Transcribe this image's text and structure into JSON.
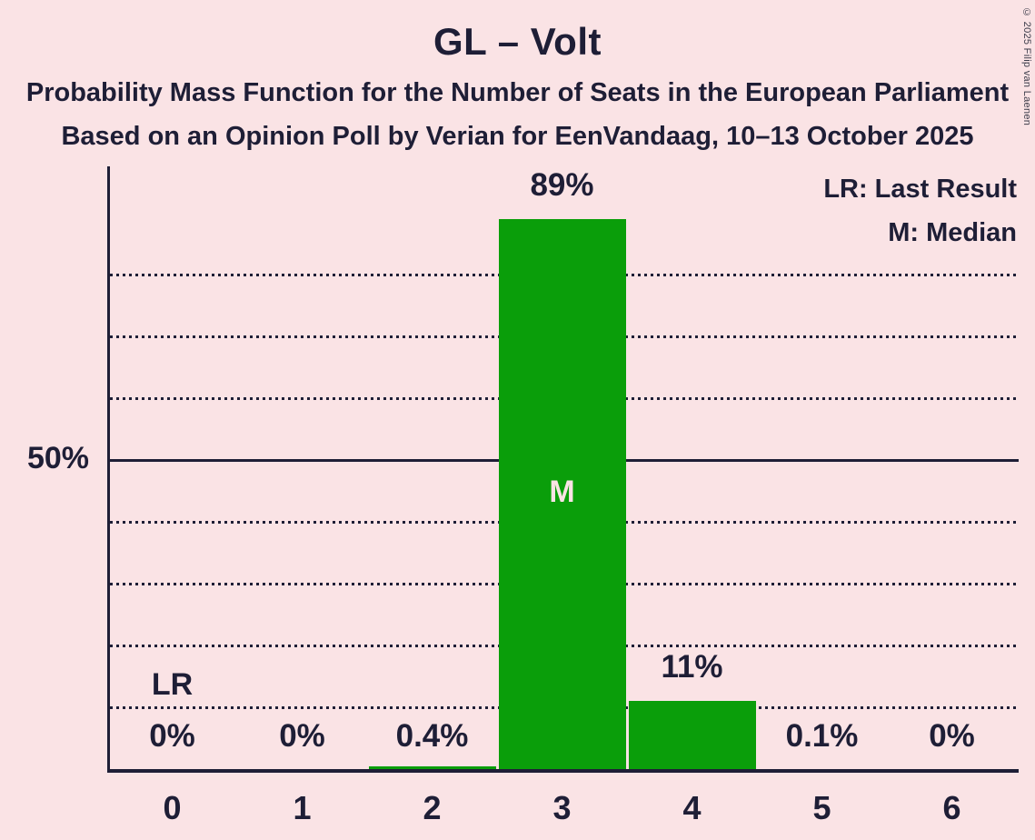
{
  "header": {
    "title": "GL – Volt",
    "subtitle1": "Probability Mass Function for the Number of Seats in the European Parliament",
    "subtitle2": "Based on an Opinion Poll by Verian for EenVandaag, 10–13 October 2025"
  },
  "legend": {
    "lr_label": "LR: Last Result",
    "m_label": "M: Median"
  },
  "copyright": "© 2025 Filip van Laenen",
  "y_axis": {
    "label_50": "50%"
  },
  "chart_data": {
    "type": "bar",
    "title": "GL – Volt",
    "xlabel": "",
    "ylabel": "",
    "categories": [
      "0",
      "1",
      "2",
      "3",
      "4",
      "5",
      "6"
    ],
    "values": [
      0,
      0,
      0.4,
      89,
      11,
      0.1,
      0
    ],
    "value_labels": [
      "0%",
      "0%",
      "0.4%",
      "89%",
      "11%",
      "0.1%",
      "0%"
    ],
    "ylim": [
      0,
      97.5
    ],
    "gridlines_pct": [
      10,
      20,
      30,
      40,
      50,
      60,
      70,
      80
    ],
    "solid_gridline_pct": 50,
    "grid_style": "dotted",
    "legend_position": "top-right",
    "annotations": [
      {
        "text": "LR",
        "meaning": "Last Result",
        "category": "0"
      },
      {
        "text": "M",
        "meaning": "Median",
        "category": "3"
      }
    ],
    "colors": {
      "bar": "#0a9e0a",
      "background": "#fae3e5",
      "text": "#1e1e36"
    }
  }
}
